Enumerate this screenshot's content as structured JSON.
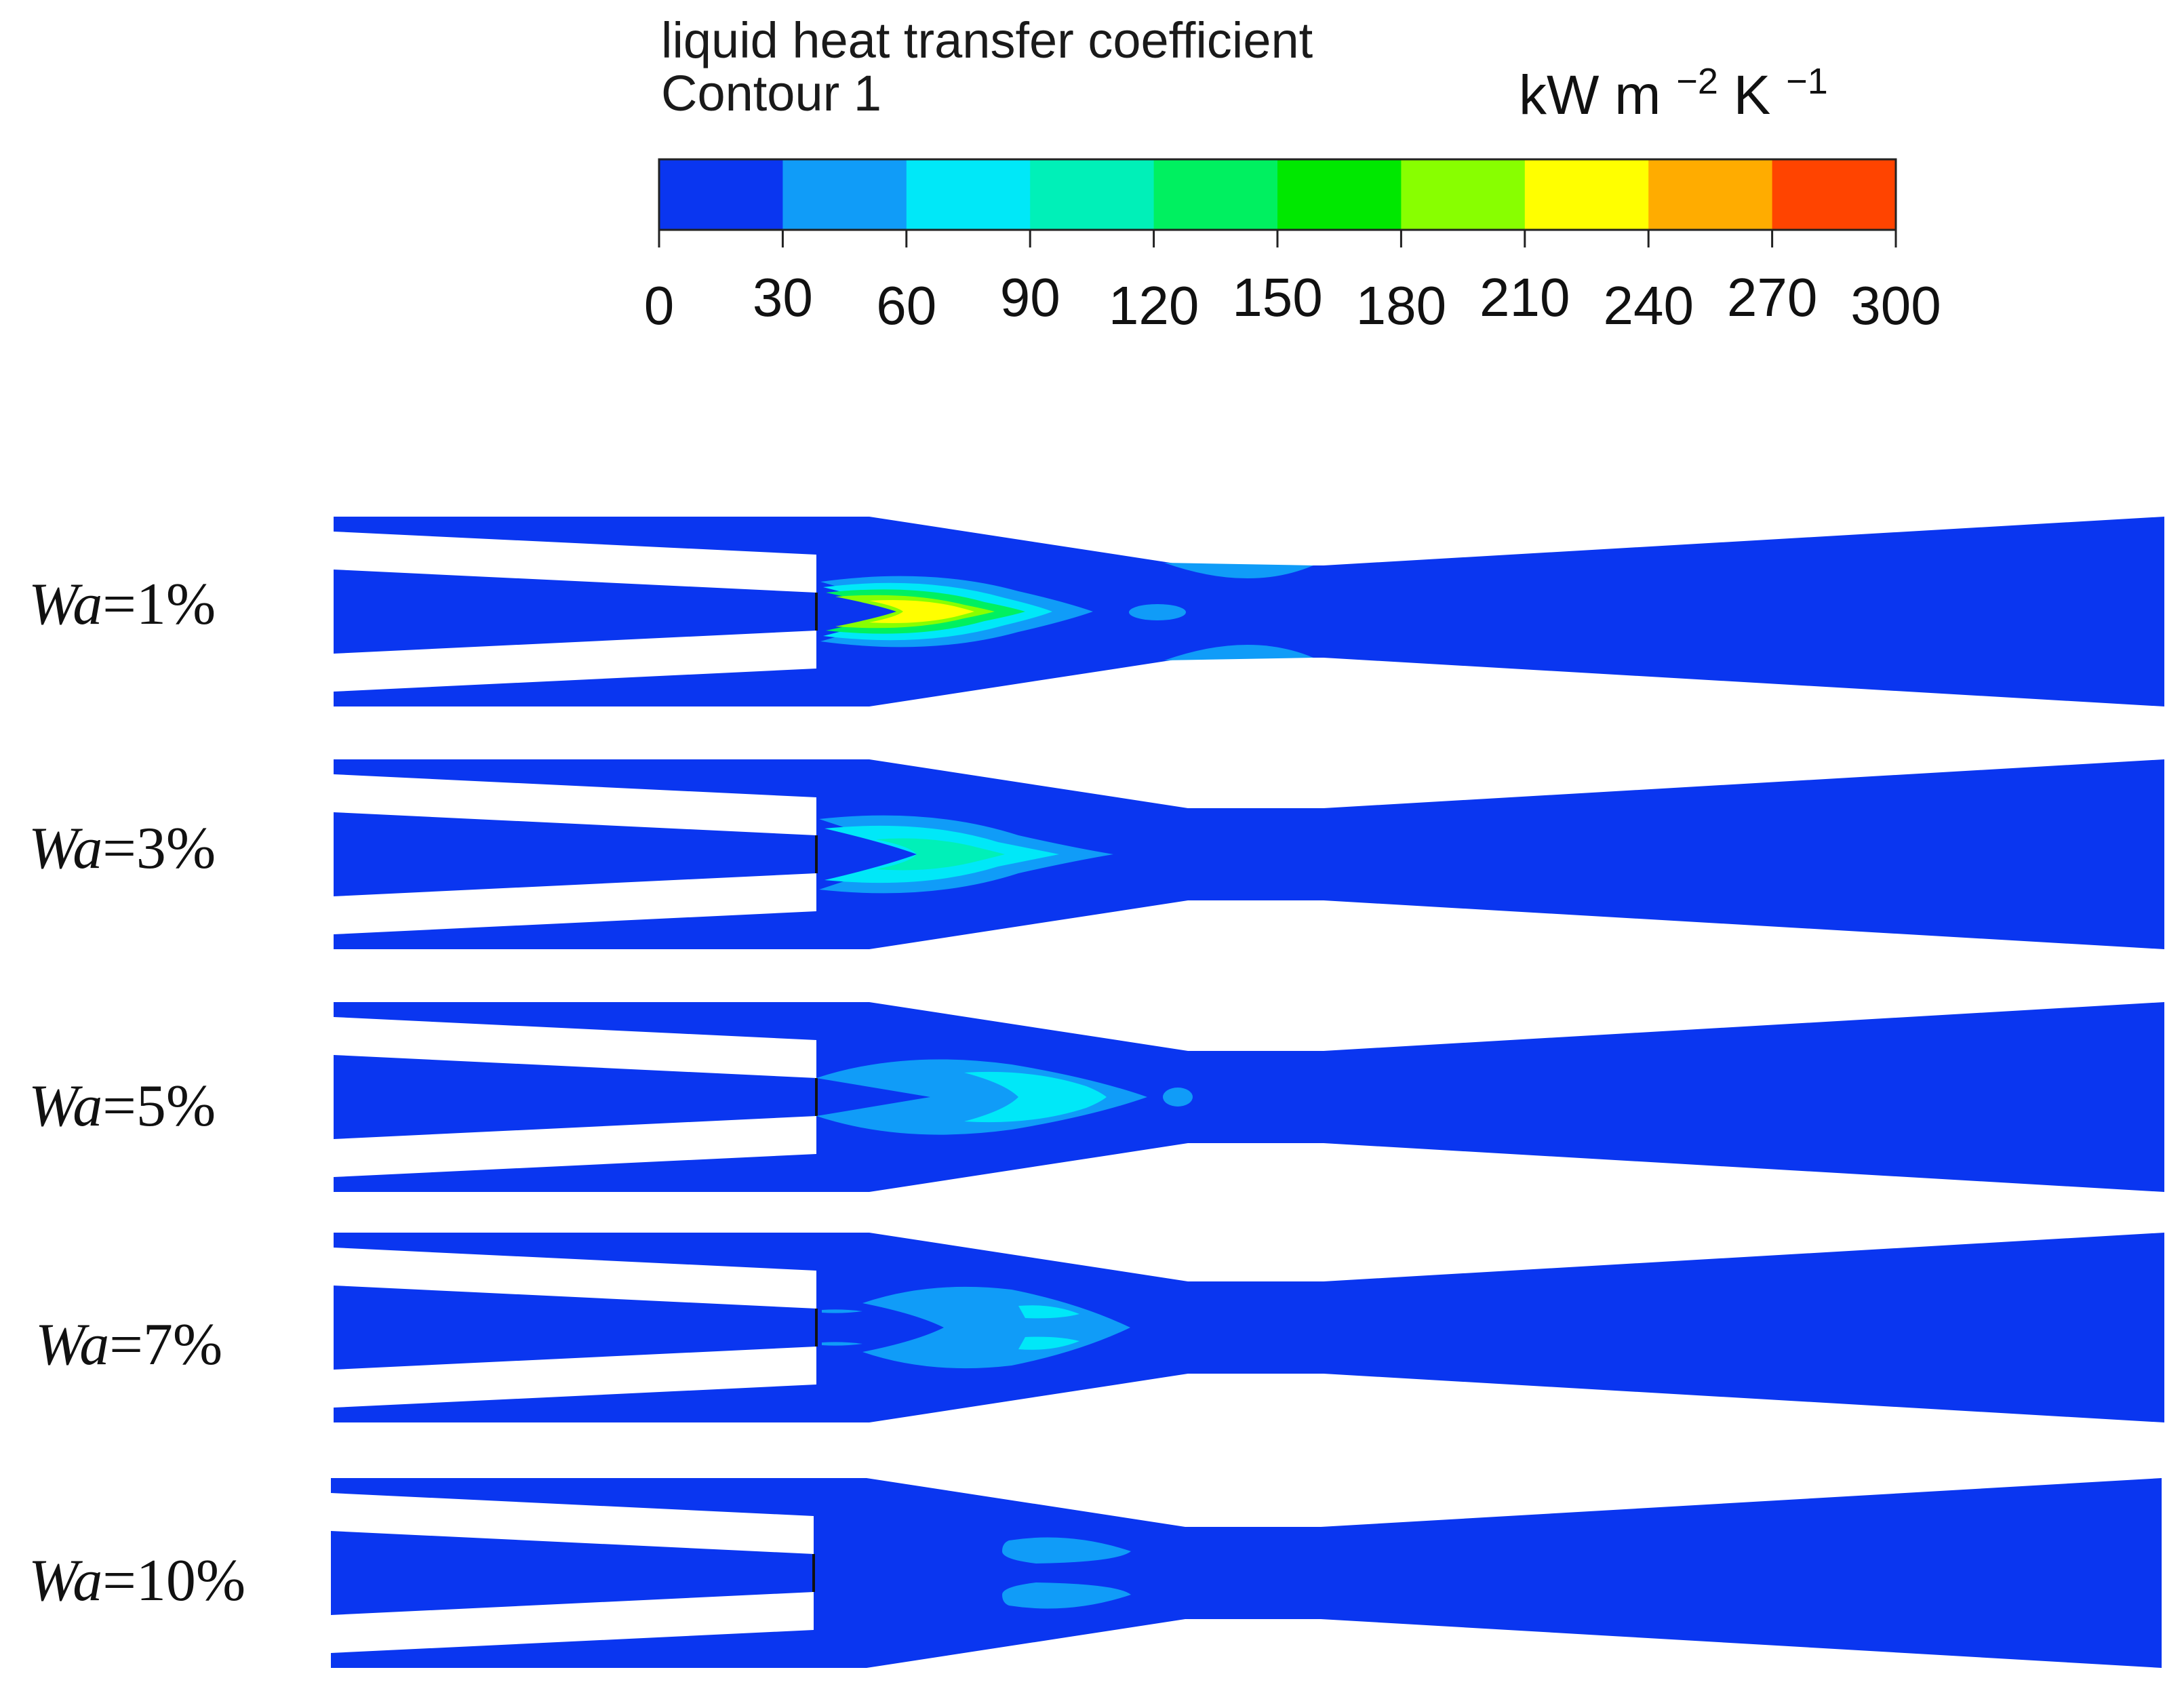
{
  "legend": {
    "title": "liquid heat transfer coefficient",
    "subtitle": "Contour 1",
    "unit_base": "kW m",
    "unit_exp1": "−2",
    "unit_mid": " K",
    "unit_exp2": "−1",
    "ticks": [
      "0",
      "30",
      "60",
      "90",
      "120",
      "150",
      "180",
      "210",
      "240",
      "270",
      "300"
    ],
    "colors": [
      "#0a36f0",
      "#109cf8",
      "#00e8f8",
      "#00f0b8",
      "#00f060",
      "#00e800",
      "#88ff00",
      "#ffff00",
      "#ffac00",
      "#ff4400"
    ]
  },
  "panels": [
    {
      "label_var": "Wa",
      "label_val": "=1%"
    },
    {
      "label_var": "Wa",
      "label_val": "=3%"
    },
    {
      "label_var": "Wa",
      "label_val": "=5%"
    },
    {
      "label_var": "Wa",
      "label_val": "=7%"
    },
    {
      "label_var": "Wa",
      "label_val": "=10%"
    }
  ]
}
